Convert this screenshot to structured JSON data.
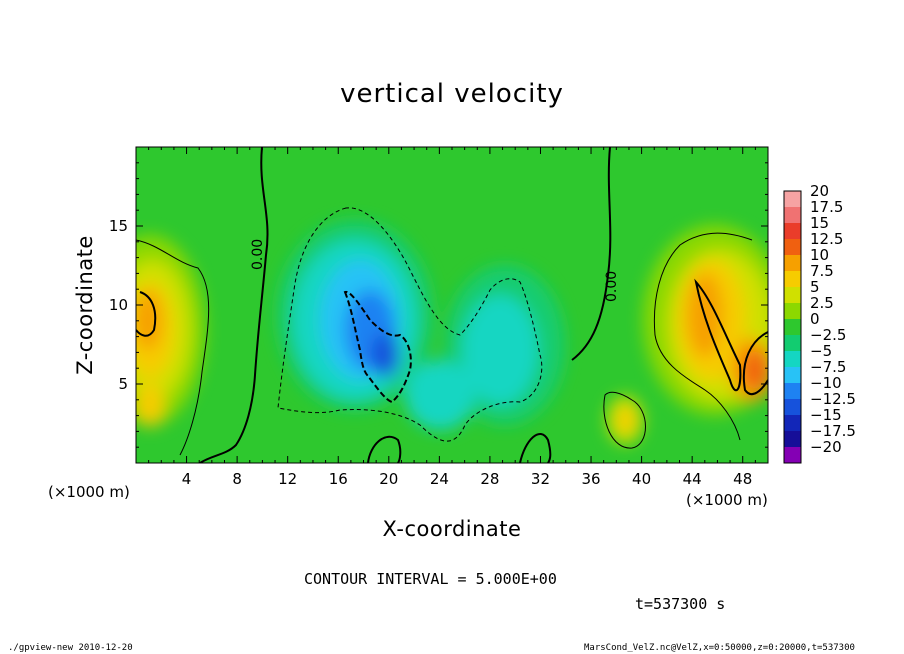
{
  "chart_data": {
    "type": "heatmap",
    "title": "vertical velocity",
    "xlabel": "X-coordinate",
    "ylabel": "Z-coordinate",
    "x_unit_label": "(×1000 m)",
    "z_unit_label": "(×1000 m)",
    "xlim": [
      0,
      50
    ],
    "ylim": [
      0,
      20
    ],
    "x_ticks": [
      4,
      8,
      12,
      16,
      20,
      24,
      28,
      32,
      36,
      40,
      44,
      48
    ],
    "y_ticks": [
      5,
      10,
      15
    ],
    "colorbar": {
      "levels": [
        "20",
        "17.5",
        "15",
        "12.5",
        "10",
        "7.5",
        "5",
        "2.5",
        "0",
        "−2.5",
        "−5",
        "−7.5",
        "−10",
        "−12.5",
        "−15",
        "−17.5",
        "−20"
      ],
      "colors": [
        "#f6a3a3",
        "#f07272",
        "#ea3d2a",
        "#f06010",
        "#f6a000",
        "#f6cc00",
        "#d0e000",
        "#8cd800",
        "#2ec82e",
        "#12cc70",
        "#14d6c2",
        "#28c2f6",
        "#1e82f2",
        "#1652dc",
        "#1226b8",
        "#160e98",
        "#8400b4"
      ]
    },
    "contour_interval_text": "CONTOUR INTERVAL = 5.000E+00",
    "contour_labels": [
      "0.00",
      "0.00"
    ],
    "time_text": "t=537300 s",
    "grid": false,
    "legend": "colorbar right"
  },
  "footer": {
    "left": "./gpview-new  2010-12-20",
    "right": "MarsCond_VelZ.nc@VelZ,x=0:50000,z=0:20000,t=537300"
  }
}
